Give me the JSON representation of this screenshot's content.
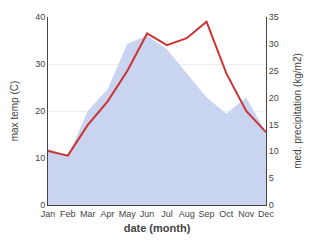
{
  "chart_data": {
    "type": "line",
    "categories": [
      "Jan",
      "Feb",
      "Mar",
      "Apr",
      "May",
      "Jun",
      "Jul",
      "Aug",
      "Sep",
      "Oct",
      "Nov",
      "Dec"
    ],
    "series": [
      {
        "type": "area",
        "color": "#c8d4f0",
        "axis": "y2",
        "values": [
          10.5,
          9.0,
          17.5,
          21.5,
          30.0,
          31.5,
          29.0,
          24.5,
          20.0,
          17.0,
          20.0,
          13.5
        ]
      },
      {
        "type": "line",
        "color": "#cc3333",
        "values": [
          11.5,
          10.5,
          17.0,
          22.0,
          28.5,
          36.5,
          34.0,
          35.5,
          39.0,
          28.0,
          20.0,
          15.5
        ]
      }
    ],
    "xlabel": "date (month)",
    "ylabel": "max temp (C)",
    "y2label": "med. precipitation (kg/m2)",
    "ylim": [
      0,
      40
    ],
    "yticks": [
      0,
      10,
      20,
      30,
      40
    ],
    "y2lim": [
      0,
      35
    ],
    "y2ticks": [
      0,
      5,
      10,
      15,
      20,
      25,
      30,
      35
    ],
    "grid": true
  }
}
